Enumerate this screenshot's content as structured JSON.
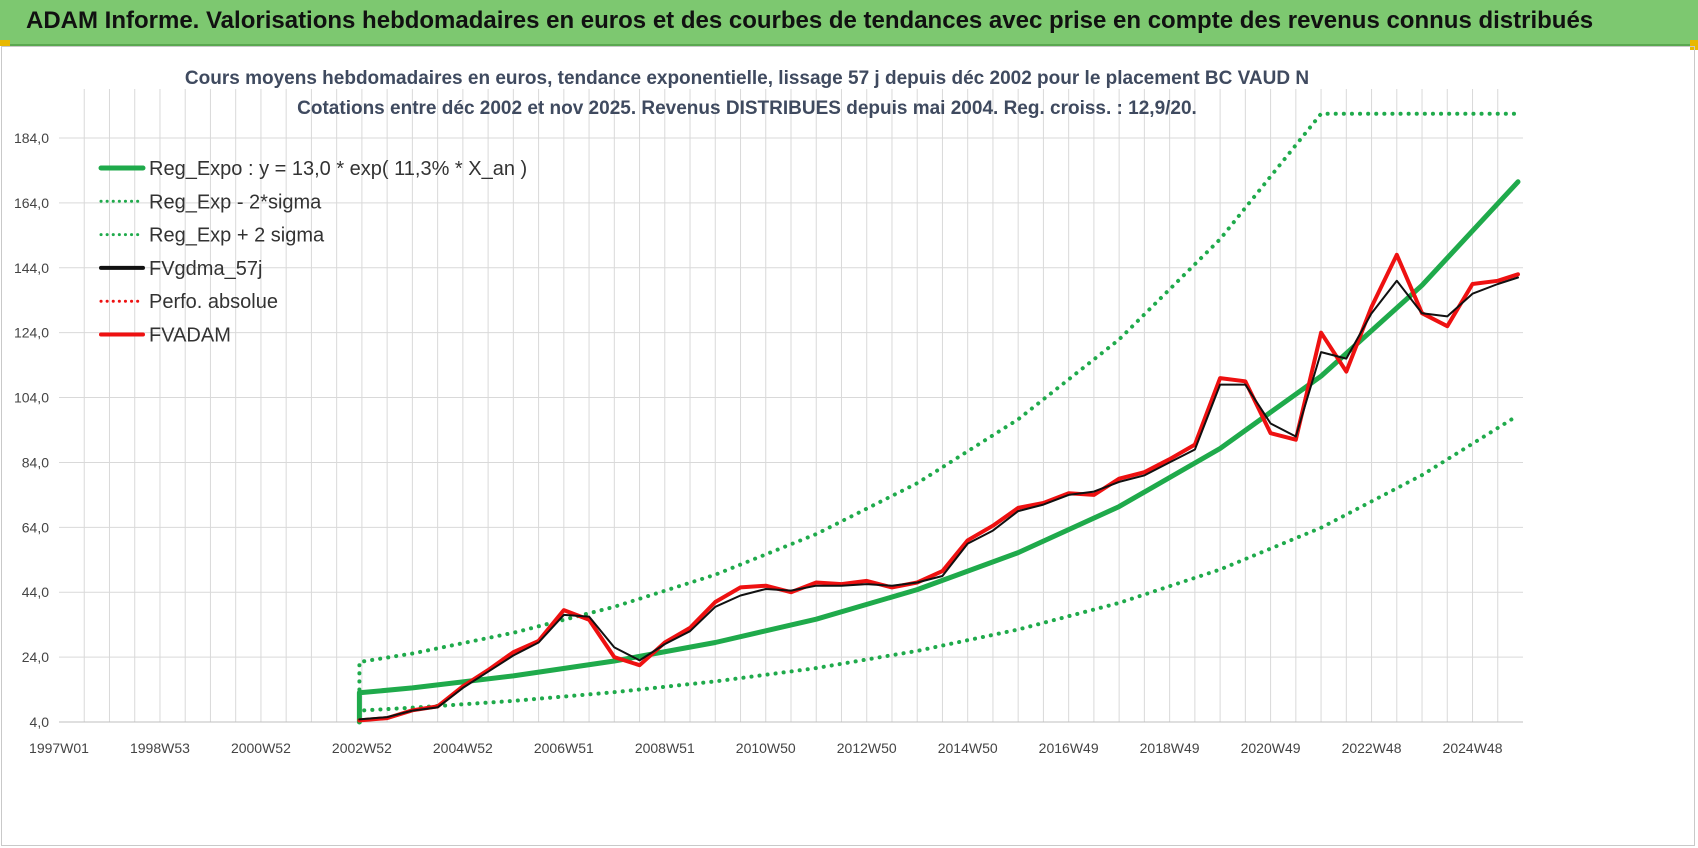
{
  "banner": {
    "title": "ADAM Informe. Valorisations hebdomadaires en euros et des courbes de tendances avec prise en compte des revenus connus distribués"
  },
  "colors": {
    "green": "#1faa4b",
    "black": "#111111",
    "red": "#ee1111",
    "banner": "#7dc870"
  },
  "chart_data": {
    "type": "line",
    "title_line1": "Cours moyens hebdomadaires en euros, tendance exponentielle, lissage 57 j depuis déc 2002 pour le placement BC VAUD N",
    "title_line2": "Cotations entre déc 2002 et nov 2025. Revenus DISTRIBUES depuis mai 2004. Reg. croiss. : 12,9/20.",
    "xlabel": "",
    "ylabel": "",
    "x_tick_labels": [
      "1997W01",
      "1998W53",
      "2000W52",
      "2002W52",
      "2004W52",
      "2006W51",
      "2008W51",
      "2010W50",
      "2012W50",
      "2014W50",
      "2016W49",
      "2018W49",
      "2020W49",
      "2022W48",
      "2024W48"
    ],
    "x_tick_years": [
      1997.0,
      1999.0,
      2001.0,
      2003.0,
      2005.0,
      2007.0,
      2009.0,
      2011.0,
      2013.0,
      2015.0,
      2017.0,
      2019.0,
      2021.0,
      2023.0,
      2025.0
    ],
    "xlim": [
      1997.0,
      2026.0
    ],
    "y_tick_labels": [
      "4,0",
      "24,0",
      "44,0",
      "64,0",
      "84,0",
      "104,0",
      "124,0",
      "144,0",
      "164,0",
      "184,0"
    ],
    "y_ticks": [
      4,
      24,
      44,
      64,
      84,
      104,
      124,
      144,
      164,
      184
    ],
    "ylim": [
      4,
      184
    ],
    "grid": true,
    "legend_position": "top-left",
    "legend": [
      {
        "label": "Reg_Expo : y = 13,0 * exp( 11,3% *  X_an )",
        "color": "#1faa4b",
        "style": "solid"
      },
      {
        "label": "Reg_Exp - 2*sigma",
        "color": "#1faa4b",
        "style": "dotted"
      },
      {
        "label": "Reg_Exp + 2 sigma",
        "color": "#1faa4b",
        "style": "dotted"
      },
      {
        "label": "FVgdma_57j",
        "color": "#111111",
        "style": "solid"
      },
      {
        "label": "Perfo. absolue",
        "color": "#ee1111",
        "style": "dotted"
      },
      {
        "label": "FVADAM",
        "color": "#ee1111",
        "style": "solid"
      }
    ],
    "series": [
      {
        "name": "Reg_Expo : y = 13,0 * exp( 11,3% *  X_an )",
        "x": [
          2002.95,
          2004.0,
          2006.0,
          2008.0,
          2010.0,
          2012.0,
          2014.0,
          2016.0,
          2018.0,
          2020.0,
          2022.0,
          2024.0,
          2025.9
        ],
        "values": [
          13.0,
          14.5,
          18.2,
          22.8,
          28.5,
          35.7,
          44.8,
          56.2,
          70.4,
          88.3,
          110.6,
          138.6,
          170.5
        ]
      },
      {
        "name": "Reg_Exp - 2*sigma",
        "x": [
          2002.95,
          2004.0,
          2006.0,
          2008.0,
          2010.0,
          2012.0,
          2014.0,
          2016.0,
          2018.0,
          2020.0,
          2022.0,
          2024.0,
          2025.9
        ],
        "values": [
          7.5,
          8.4,
          10.5,
          13.2,
          16.5,
          20.6,
          25.9,
          32.5,
          40.7,
          51.0,
          63.9,
          80.1,
          98.5
        ]
      },
      {
        "name": "Reg_Exp + 2 sigma",
        "x": [
          2002.95,
          2004.0,
          2006.0,
          2008.0,
          2010.0,
          2012.0,
          2014.0,
          2016.0,
          2018.0,
          2020.0,
          2022.0,
          2024.0,
          2025.9
        ],
        "values": [
          22.5,
          25.1,
          31.5,
          39.5,
          49.4,
          61.9,
          77.6,
          97.3,
          121.9,
          152.8,
          191.5,
          191.5,
          191.5
        ]
      },
      {
        "name": "FVgdma_57j",
        "x": [
          2002.95,
          2003.5,
          2004.0,
          2004.5,
          2005.0,
          2005.5,
          2006.0,
          2006.5,
          2007.0,
          2007.5,
          2008.0,
          2008.5,
          2009.0,
          2009.5,
          2010.0,
          2010.5,
          2011.0,
          2011.5,
          2012.0,
          2012.5,
          2013.0,
          2013.5,
          2014.0,
          2014.5,
          2015.0,
          2015.5,
          2016.0,
          2016.5,
          2017.0,
          2017.5,
          2018.0,
          2018.5,
          2019.0,
          2019.5,
          2020.0,
          2020.5,
          2021.0,
          2021.5,
          2022.0,
          2022.5,
          2023.0,
          2023.5,
          2024.0,
          2024.5,
          2025.0,
          2025.5,
          2025.9
        ],
        "values": [
          4.8,
          5.5,
          7.5,
          8.5,
          14.5,
          19.5,
          24.5,
          28.5,
          37.0,
          36.5,
          27.0,
          23.0,
          28.0,
          32.0,
          39.5,
          43.0,
          45.0,
          44.5,
          46.0,
          46.0,
          46.5,
          46.0,
          47.0,
          49.0,
          59.0,
          63.0,
          69.0,
          71.0,
          74.0,
          75.0,
          78.0,
          80.0,
          84.0,
          88.0,
          108.0,
          108.0,
          96.0,
          92.0,
          118.0,
          116.0,
          130.0,
          140.0,
          130.0,
          129.0,
          136.0,
          139.0,
          141.0
        ]
      },
      {
        "name": "FVADAM",
        "x": [
          2002.95,
          2003.5,
          2004.0,
          2004.5,
          2005.0,
          2005.5,
          2006.0,
          2006.5,
          2007.0,
          2007.5,
          2008.0,
          2008.5,
          2009.0,
          2009.5,
          2010.0,
          2010.5,
          2011.0,
          2011.5,
          2012.0,
          2012.5,
          2013.0,
          2013.5,
          2014.0,
          2014.5,
          2015.0,
          2015.5,
          2016.0,
          2016.5,
          2017.0,
          2017.5,
          2018.0,
          2018.5,
          2019.0,
          2019.5,
          2020.0,
          2020.5,
          2021.0,
          2021.5,
          2022.0,
          2022.5,
          2023.0,
          2023.5,
          2024.0,
          2024.5,
          2025.0,
          2025.5,
          2025.9
        ],
        "values": [
          4.5,
          5.2,
          7.6,
          8.8,
          15.0,
          20.0,
          25.5,
          29.0,
          38.5,
          35.5,
          24.0,
          21.5,
          28.5,
          33.0,
          41.0,
          45.5,
          46.0,
          44.0,
          47.0,
          46.5,
          47.5,
          45.5,
          47.0,
          50.5,
          60.0,
          64.5,
          70.0,
          71.5,
          74.5,
          74.0,
          79.0,
          81.0,
          85.0,
          89.5,
          110.0,
          109.0,
          93.0,
          91.0,
          124.0,
          112.0,
          132.0,
          148.0,
          130.0,
          126.0,
          139.0,
          140.0,
          142.0
        ]
      }
    ]
  }
}
